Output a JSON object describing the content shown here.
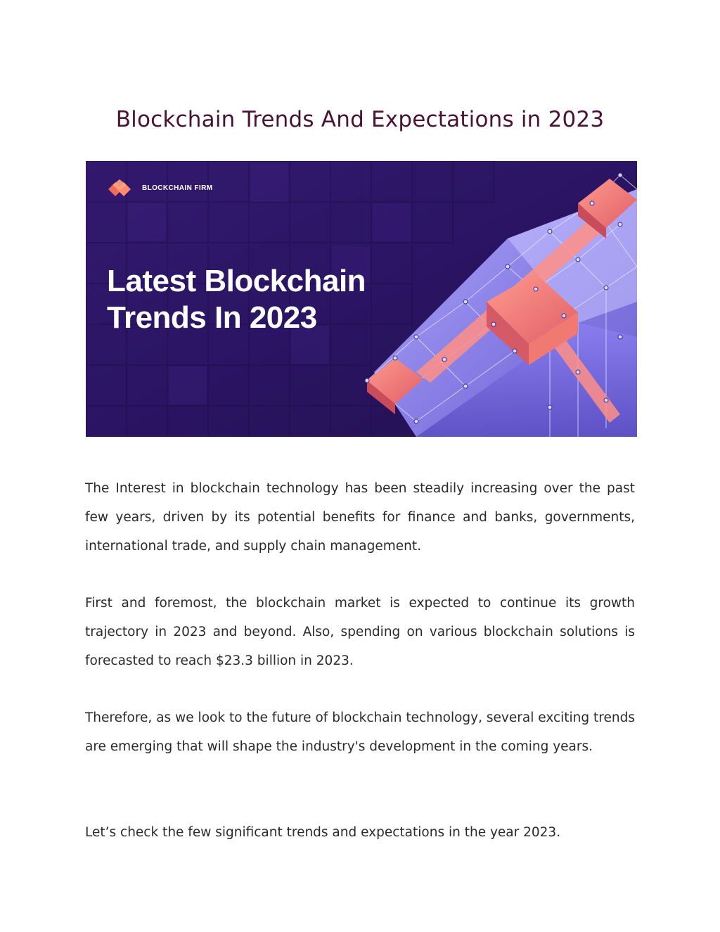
{
  "document": {
    "title": "Blockchain Trends And Expectations in 2023"
  },
  "banner": {
    "brand_name": "BLOCKCHAIN FIRM",
    "headline": "Latest Blockchain Trends In 2023",
    "colors": {
      "background": "#2b1660",
      "accent": "#f07a72",
      "cube": "#9a93f0"
    }
  },
  "paragraphs": [
    "The Interest in blockchain technology has been steadily increasing over the past few years, driven by its potential benefits for finance and banks, governments, international trade, and supply chain management.",
    "First and foremost, the blockchain market is expected to continue its growth trajectory in 2023 and beyond. Also, spending on various blockchain solutions is forecasted to reach $23.3 billion in 2023.",
    "Therefore, as we look to the future of blockchain technology, several exciting trends are emerging that will shape the industry's development in the coming years.",
    "Let’s check the few significant trends and expectations in the year 2023."
  ]
}
